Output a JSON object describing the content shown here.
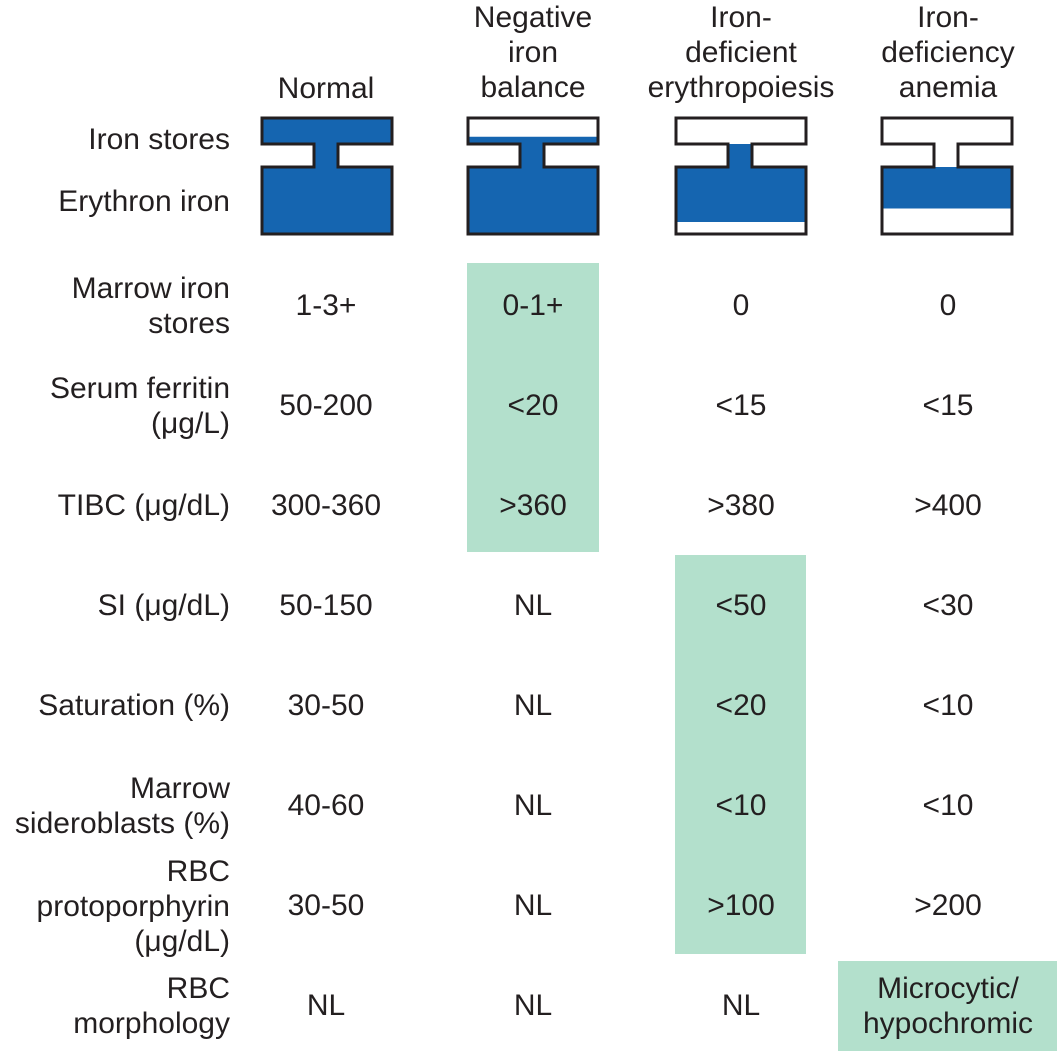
{
  "columns": [
    {
      "label": "Normal",
      "stores_fill": 1.0,
      "erythron_fill": 1.0
    },
    {
      "label": "Negative\niron\nbalance",
      "stores_fill": 0.28,
      "erythron_fill": 1.0
    },
    {
      "label": "Iron-\ndeficient\nerythropoiesis",
      "stores_fill": 0.0,
      "erythron_fill": 0.8
    },
    {
      "label": "Iron-\ndeficiency\nanemia",
      "stores_fill": 0.0,
      "erythron_fill": 0.6
    }
  ],
  "diagram_labels": {
    "iron_stores": "Iron stores",
    "erythron_iron": "Erythron iron"
  },
  "rows": [
    {
      "label": "Marrow iron\nstores",
      "values": [
        "1-3+",
        "0-1+",
        "0",
        "0"
      ]
    },
    {
      "label": "Serum ferritin\n(μg/L)",
      "values": [
        "50-200",
        "<20",
        "<15",
        "<15"
      ]
    },
    {
      "label": "TIBC (μg/dL)",
      "values": [
        "300-360",
        ">360",
        ">380",
        ">400"
      ]
    },
    {
      "label": "SI (μg/dL)",
      "values": [
        "50-150",
        "NL",
        "<50",
        "<30"
      ]
    },
    {
      "label": "Saturation (%)",
      "values": [
        "30-50",
        "NL",
        "<20",
        "<10"
      ]
    },
    {
      "label": "Marrow\nsideroblasts (%)",
      "values": [
        "40-60",
        "NL",
        "<10",
        "<10"
      ]
    },
    {
      "label": "RBC\nprotoporphyrin\n(μg/dL)",
      "values": [
        "30-50",
        "NL",
        ">100",
        ">200"
      ]
    },
    {
      "label": "RBC\nmorphology",
      "values": [
        "NL",
        "NL",
        "NL",
        "Microcytic/\nhypochromic"
      ]
    }
  ],
  "highlight_color": "#b3e0cc",
  "iron_color": "#1565b0"
}
